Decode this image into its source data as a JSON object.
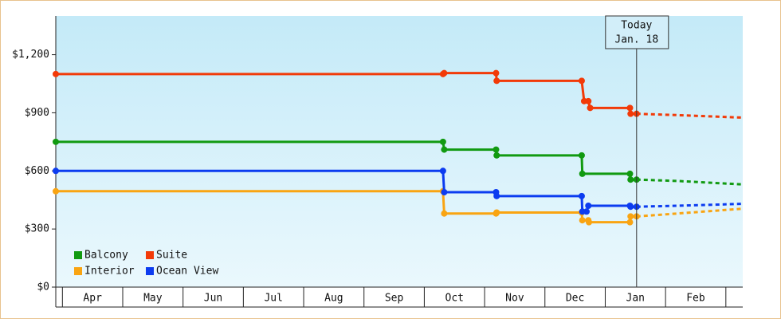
{
  "chart_data": {
    "type": "line",
    "categories": [
      "Apr",
      "May",
      "Jun",
      "Jul",
      "Aug",
      "Sep",
      "Oct",
      "Nov",
      "Dec",
      "Jan",
      "Feb"
    ],
    "xlim": [
      -0.11,
      11.28
    ],
    "ylim": [
      0,
      1400
    ],
    "yticks": [
      {
        "value": 0,
        "label": "$0"
      },
      {
        "value": 300,
        "label": "$300"
      },
      {
        "value": 600,
        "label": "$600"
      },
      {
        "value": 900,
        "label": "$900"
      },
      {
        "value": 1200,
        "label": "$1,200"
      }
    ],
    "annotation": {
      "lines": [
        "Today",
        "Jan. 18"
      ],
      "x": 9.52
    },
    "series": [
      {
        "name": "Balcony",
        "color": "#119a11",
        "x": [
          -0.11,
          6.31,
          6.33,
          7.19,
          7.2,
          8.61,
          8.62,
          9.41,
          9.42,
          9.52
        ],
        "values": [
          750,
          750,
          710,
          710,
          680,
          680,
          585,
          585,
          555,
          555
        ],
        "forecast": {
          "x": [
            9.52,
            10.2,
            11.28
          ],
          "values": [
            555,
            548,
            530
          ]
        }
      },
      {
        "name": "Suite",
        "color": "#f23a08",
        "x": [
          -0.11,
          6.31,
          6.33,
          7.19,
          7.2,
          8.61,
          8.65,
          8.72,
          8.75,
          9.41,
          9.42,
          9.52
        ],
        "values": [
          1100,
          1100,
          1105,
          1105,
          1065,
          1065,
          960,
          960,
          925,
          925,
          895,
          895
        ],
        "forecast": {
          "x": [
            9.52,
            10.2,
            11.28
          ],
          "values": [
            895,
            888,
            875
          ]
        }
      },
      {
        "name": "Interior",
        "color": "#f9a412",
        "x": [
          -0.11,
          6.31,
          6.33,
          7.19,
          7.2,
          8.61,
          8.62,
          8.72,
          8.73,
          9.41,
          9.42,
          9.52
        ],
        "values": [
          495,
          495,
          380,
          380,
          385,
          385,
          345,
          345,
          335,
          335,
          365,
          365
        ],
        "forecast": {
          "x": [
            9.52,
            10.2,
            11.28
          ],
          "values": [
            365,
            380,
            405
          ]
        }
      },
      {
        "name": "Ocean View",
        "color": "#0c3cf0",
        "x": [
          -0.11,
          6.31,
          6.33,
          7.19,
          7.2,
          8.61,
          8.62,
          8.69,
          8.72,
          9.41,
          9.42,
          9.52
        ],
        "values": [
          600,
          600,
          490,
          490,
          470,
          470,
          390,
          390,
          420,
          420,
          415,
          415
        ],
        "forecast": {
          "x": [
            9.52,
            10.2,
            11.28
          ],
          "values": [
            415,
            420,
            430
          ]
        }
      }
    ]
  }
}
